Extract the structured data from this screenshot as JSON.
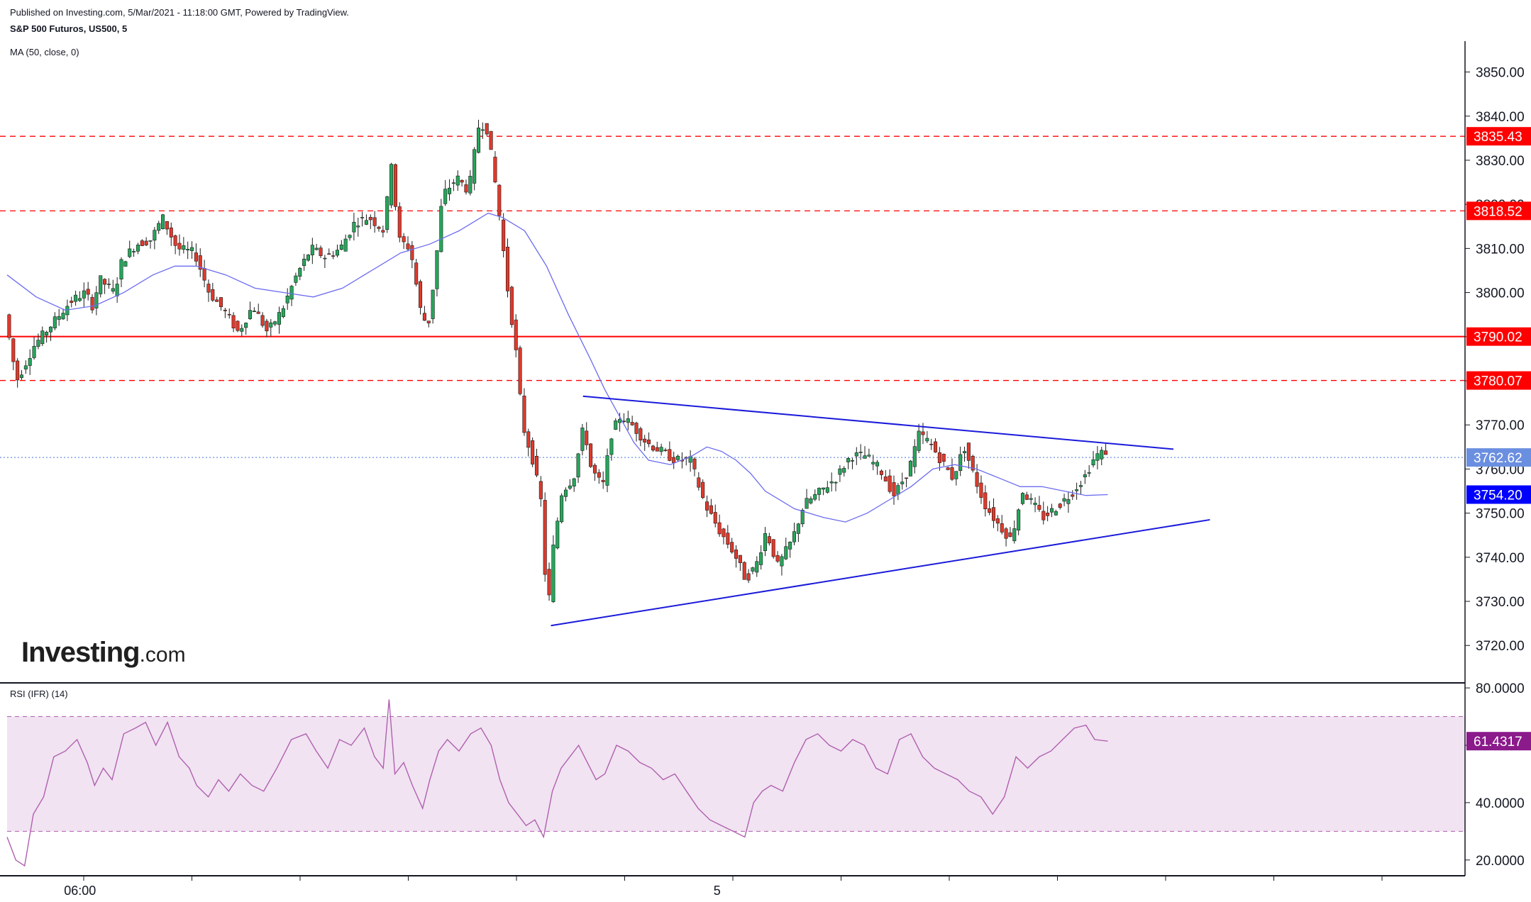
{
  "header": {
    "published": "Published on Investing.com, 5/Mar/2021 - 11:18:00 GMT, Powered by TradingView.",
    "symbol": "S&P 500 Futuros, US500, 5",
    "ma_label": "MA (50, close, 0)",
    "rsi_label": "RSI (IFR) (14)"
  },
  "logo": {
    "main": "Investing",
    "suffix": ".com"
  },
  "colors": {
    "up_candle": "#26a65b",
    "down_candle": "#e0392b",
    "ma_line": "#6c6cf0",
    "trendline": "#1a1adb",
    "resistance": "#ff0000",
    "current_price": "#6b8fe0",
    "rsi_line": "#b060b0",
    "rsi_band": "#f1e3f1"
  },
  "chart_data": [
    {
      "type": "candlestick",
      "title": "S&P 500 Futuros, US500, 5",
      "ylim": [
        3712,
        3857
      ],
      "yticks": [
        "3720.00",
        "3730.00",
        "3740.00",
        "3750.00",
        "3760.00",
        "3770.00",
        "3780.00",
        "3790.00",
        "3800.00",
        "3810.00",
        "3820.00",
        "3830.00",
        "3840.00",
        "3850.00"
      ],
      "xticks": [
        {
          "label": "06:00",
          "t": 0.05
        },
        {
          "label": "5",
          "t": 0.487
        }
      ],
      "levels": [
        {
          "value": 3835.43,
          "label": "3835.43",
          "style": "dashed",
          "color": "#ff0000"
        },
        {
          "value": 3818.52,
          "label": "3818.52",
          "style": "dashed",
          "color": "#ff0000"
        },
        {
          "value": 3790.02,
          "label": "3790.02",
          "style": "solid",
          "color": "#ff0000"
        },
        {
          "value": 3780.07,
          "label": "3780.07",
          "style": "dashed",
          "color": "#ff0000"
        },
        {
          "value": 3762.62,
          "label": "3762.62",
          "style": "dotted",
          "color": "#6b8fe0"
        },
        {
          "value": 3754.2,
          "label": "3754.20",
          "style": "none",
          "color": "#0000ff"
        }
      ],
      "trendlines": [
        {
          "t1": 0.395,
          "v1": 3776.5,
          "t2": 0.8,
          "v2": 3764.5
        },
        {
          "t1": 0.373,
          "v1": 3724.5,
          "t2": 0.825,
          "v2": 3748.5
        }
      ],
      "price_path": [
        [
          0.0,
          3795
        ],
        [
          0.008,
          3780
        ],
        [
          0.02,
          3788
        ],
        [
          0.03,
          3792
        ],
        [
          0.045,
          3798
        ],
        [
          0.055,
          3800
        ],
        [
          0.06,
          3797
        ],
        [
          0.065,
          3803
        ],
        [
          0.075,
          3800
        ],
        [
          0.08,
          3807
        ],
        [
          0.09,
          3811
        ],
        [
          0.1,
          3812
        ],
        [
          0.108,
          3817
        ],
        [
          0.118,
          3810
        ],
        [
          0.13,
          3809
        ],
        [
          0.14,
          3800
        ],
        [
          0.15,
          3796
        ],
        [
          0.16,
          3791
        ],
        [
          0.17,
          3797
        ],
        [
          0.18,
          3791
        ],
        [
          0.19,
          3796
        ],
        [
          0.2,
          3804
        ],
        [
          0.21,
          3810
        ],
        [
          0.22,
          3808
        ],
        [
          0.23,
          3810
        ],
        [
          0.24,
          3816
        ],
        [
          0.25,
          3817
        ],
        [
          0.26,
          3814
        ],
        [
          0.265,
          3830
        ],
        [
          0.27,
          3812
        ],
        [
          0.278,
          3810
        ],
        [
          0.285,
          3796
        ],
        [
          0.29,
          3792
        ],
        [
          0.295,
          3805
        ],
        [
          0.3,
          3822
        ],
        [
          0.31,
          3826
        ],
        [
          0.318,
          3823
        ],
        [
          0.325,
          3838
        ],
        [
          0.33,
          3838
        ],
        [
          0.335,
          3828
        ],
        [
          0.34,
          3815
        ],
        [
          0.345,
          3800
        ],
        [
          0.35,
          3788
        ],
        [
          0.355,
          3770
        ],
        [
          0.362,
          3762
        ],
        [
          0.368,
          3752
        ],
        [
          0.372,
          3726
        ],
        [
          0.376,
          3742
        ],
        [
          0.382,
          3755
        ],
        [
          0.39,
          3758
        ],
        [
          0.397,
          3770
        ],
        [
          0.402,
          3760
        ],
        [
          0.41,
          3756
        ],
        [
          0.416,
          3768
        ],
        [
          0.422,
          3772
        ],
        [
          0.43,
          3770
        ],
        [
          0.44,
          3766
        ],
        [
          0.45,
          3764
        ],
        [
          0.46,
          3762
        ],
        [
          0.47,
          3762
        ],
        [
          0.48,
          3752
        ],
        [
          0.49,
          3746
        ],
        [
          0.5,
          3741
        ],
        [
          0.508,
          3735
        ],
        [
          0.515,
          3738
        ],
        [
          0.522,
          3746
        ],
        [
          0.53,
          3738
        ],
        [
          0.54,
          3744
        ],
        [
          0.548,
          3752
        ],
        [
          0.556,
          3754
        ],
        [
          0.563,
          3756
        ],
        [
          0.57,
          3758
        ],
        [
          0.58,
          3763
        ],
        [
          0.59,
          3763
        ],
        [
          0.6,
          3760
        ],
        [
          0.61,
          3754
        ],
        [
          0.62,
          3760
        ],
        [
          0.627,
          3768
        ],
        [
          0.634,
          3766
        ],
        [
          0.642,
          3762
        ],
        [
          0.65,
          3758
        ],
        [
          0.658,
          3765
        ],
        [
          0.665,
          3758
        ],
        [
          0.672,
          3752
        ],
        [
          0.68,
          3748
        ],
        [
          0.69,
          3744
        ],
        [
          0.698,
          3755
        ],
        [
          0.705,
          3752
        ],
        [
          0.712,
          3749
        ],
        [
          0.72,
          3751
        ],
        [
          0.73,
          3754
        ],
        [
          0.74,
          3758
        ],
        [
          0.748,
          3763
        ],
        [
          0.755,
          3764
        ]
      ],
      "ma_path": [
        [
          0.0,
          3804
        ],
        [
          0.02,
          3799
        ],
        [
          0.04,
          3796
        ],
        [
          0.06,
          3797
        ],
        [
          0.08,
          3800
        ],
        [
          0.1,
          3804
        ],
        [
          0.115,
          3806
        ],
        [
          0.13,
          3806
        ],
        [
          0.15,
          3804
        ],
        [
          0.17,
          3801
        ],
        [
          0.19,
          3800
        ],
        [
          0.21,
          3799
        ],
        [
          0.23,
          3801
        ],
        [
          0.25,
          3805
        ],
        [
          0.27,
          3809
        ],
        [
          0.29,
          3811
        ],
        [
          0.31,
          3814
        ],
        [
          0.33,
          3818
        ],
        [
          0.34,
          3817
        ],
        [
          0.355,
          3814
        ],
        [
          0.37,
          3806
        ],
        [
          0.385,
          3795
        ],
        [
          0.4,
          3785
        ],
        [
          0.41,
          3778
        ],
        [
          0.42,
          3772
        ],
        [
          0.43,
          3766
        ],
        [
          0.44,
          3762
        ],
        [
          0.455,
          3761
        ],
        [
          0.47,
          3763
        ],
        [
          0.48,
          3765
        ],
        [
          0.49,
          3764
        ],
        [
          0.5,
          3762
        ],
        [
          0.51,
          3759
        ],
        [
          0.52,
          3755
        ],
        [
          0.54,
          3751
        ],
        [
          0.56,
          3749
        ],
        [
          0.575,
          3748
        ],
        [
          0.59,
          3750
        ],
        [
          0.605,
          3753
        ],
        [
          0.62,
          3756
        ],
        [
          0.635,
          3760
        ],
        [
          0.65,
          3761
        ],
        [
          0.665,
          3760
        ],
        [
          0.68,
          3758
        ],
        [
          0.695,
          3756
        ],
        [
          0.71,
          3756
        ],
        [
          0.725,
          3755
        ],
        [
          0.74,
          3754
        ],
        [
          0.755,
          3754.2
        ]
      ]
    },
    {
      "type": "line",
      "title": "RSI (IFR) (14)",
      "ylim": [
        15,
        82
      ],
      "yticks": [
        "20.0000",
        "40.0000",
        "60.0000",
        "80.0000"
      ],
      "band": [
        30,
        70
      ],
      "last_value": "61.4317",
      "rsi_path": [
        [
          0.0,
          28
        ],
        [
          0.006,
          20
        ],
        [
          0.012,
          18
        ],
        [
          0.018,
          36
        ],
        [
          0.025,
          42
        ],
        [
          0.032,
          56
        ],
        [
          0.04,
          58
        ],
        [
          0.048,
          62
        ],
        [
          0.055,
          54
        ],
        [
          0.06,
          46
        ],
        [
          0.066,
          52
        ],
        [
          0.072,
          48
        ],
        [
          0.08,
          64
        ],
        [
          0.088,
          66
        ],
        [
          0.095,
          68
        ],
        [
          0.102,
          60
        ],
        [
          0.11,
          68
        ],
        [
          0.118,
          56
        ],
        [
          0.125,
          52
        ],
        [
          0.13,
          46
        ],
        [
          0.138,
          42
        ],
        [
          0.145,
          48
        ],
        [
          0.152,
          44
        ],
        [
          0.16,
          50
        ],
        [
          0.168,
          46
        ],
        [
          0.176,
          44
        ],
        [
          0.185,
          52
        ],
        [
          0.195,
          62
        ],
        [
          0.205,
          64
        ],
        [
          0.212,
          58
        ],
        [
          0.22,
          52
        ],
        [
          0.228,
          62
        ],
        [
          0.236,
          60
        ],
        [
          0.245,
          66
        ],
        [
          0.252,
          56
        ],
        [
          0.258,
          52
        ],
        [
          0.262,
          76
        ],
        [
          0.266,
          50
        ],
        [
          0.272,
          54
        ],
        [
          0.278,
          46
        ],
        [
          0.285,
          38
        ],
        [
          0.29,
          48
        ],
        [
          0.296,
          58
        ],
        [
          0.302,
          62
        ],
        [
          0.31,
          58
        ],
        [
          0.318,
          64
        ],
        [
          0.325,
          66
        ],
        [
          0.332,
          60
        ],
        [
          0.338,
          48
        ],
        [
          0.344,
          40
        ],
        [
          0.35,
          36
        ],
        [
          0.356,
          32
        ],
        [
          0.362,
          34
        ],
        [
          0.368,
          28
        ],
        [
          0.374,
          44
        ],
        [
          0.38,
          52
        ],
        [
          0.386,
          56
        ],
        [
          0.392,
          60
        ],
        [
          0.398,
          54
        ],
        [
          0.404,
          48
        ],
        [
          0.41,
          50
        ],
        [
          0.418,
          60
        ],
        [
          0.426,
          58
        ],
        [
          0.434,
          54
        ],
        [
          0.442,
          52
        ],
        [
          0.45,
          48
        ],
        [
          0.458,
          50
        ],
        [
          0.466,
          44
        ],
        [
          0.474,
          38
        ],
        [
          0.482,
          34
        ],
        [
          0.49,
          32
        ],
        [
          0.498,
          30
        ],
        [
          0.506,
          28
        ],
        [
          0.512,
          40
        ],
        [
          0.518,
          44
        ],
        [
          0.524,
          46
        ],
        [
          0.532,
          44
        ],
        [
          0.54,
          54
        ],
        [
          0.548,
          62
        ],
        [
          0.556,
          64
        ],
        [
          0.564,
          60
        ],
        [
          0.572,
          58
        ],
        [
          0.58,
          62
        ],
        [
          0.588,
          60
        ],
        [
          0.596,
          52
        ],
        [
          0.604,
          50
        ],
        [
          0.612,
          62
        ],
        [
          0.62,
          64
        ],
        [
          0.628,
          56
        ],
        [
          0.636,
          52
        ],
        [
          0.644,
          50
        ],
        [
          0.652,
          48
        ],
        [
          0.66,
          44
        ],
        [
          0.668,
          42
        ],
        [
          0.676,
          36
        ],
        [
          0.684,
          42
        ],
        [
          0.692,
          56
        ],
        [
          0.7,
          52
        ],
        [
          0.708,
          56
        ],
        [
          0.716,
          58
        ],
        [
          0.724,
          62
        ],
        [
          0.732,
          66
        ],
        [
          0.74,
          67
        ],
        [
          0.746,
          62
        ],
        [
          0.755,
          61.43
        ]
      ]
    }
  ]
}
